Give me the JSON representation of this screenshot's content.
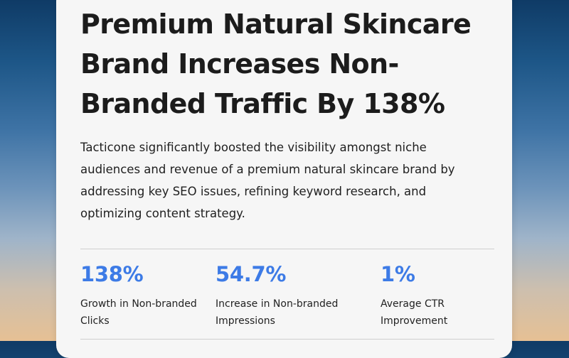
{
  "hero": {
    "title": "Premium Natural Skincare Brand Increases Non-Branded Traffic By 138%",
    "description": "Tacticone significantly boosted the visibility amongst niche audiences and revenue of a premium natural skincare brand by addressing key SEO issues, refining keyword research, and optimizing content strategy."
  },
  "stats": [
    {
      "value": "138%",
      "label_line1": "Growth in Non-branded",
      "label_line2": "Clicks"
    },
    {
      "value": "54.7%",
      "label_line1": "Increase in Non-branded",
      "label_line2": "Impressions"
    },
    {
      "value": "1%",
      "label_line1": "Average CTR",
      "label_line2": "Improvement"
    }
  ],
  "colors": {
    "accent": "#3d7be6",
    "text": "#1c1c1c",
    "card": "#f6f6f6"
  }
}
